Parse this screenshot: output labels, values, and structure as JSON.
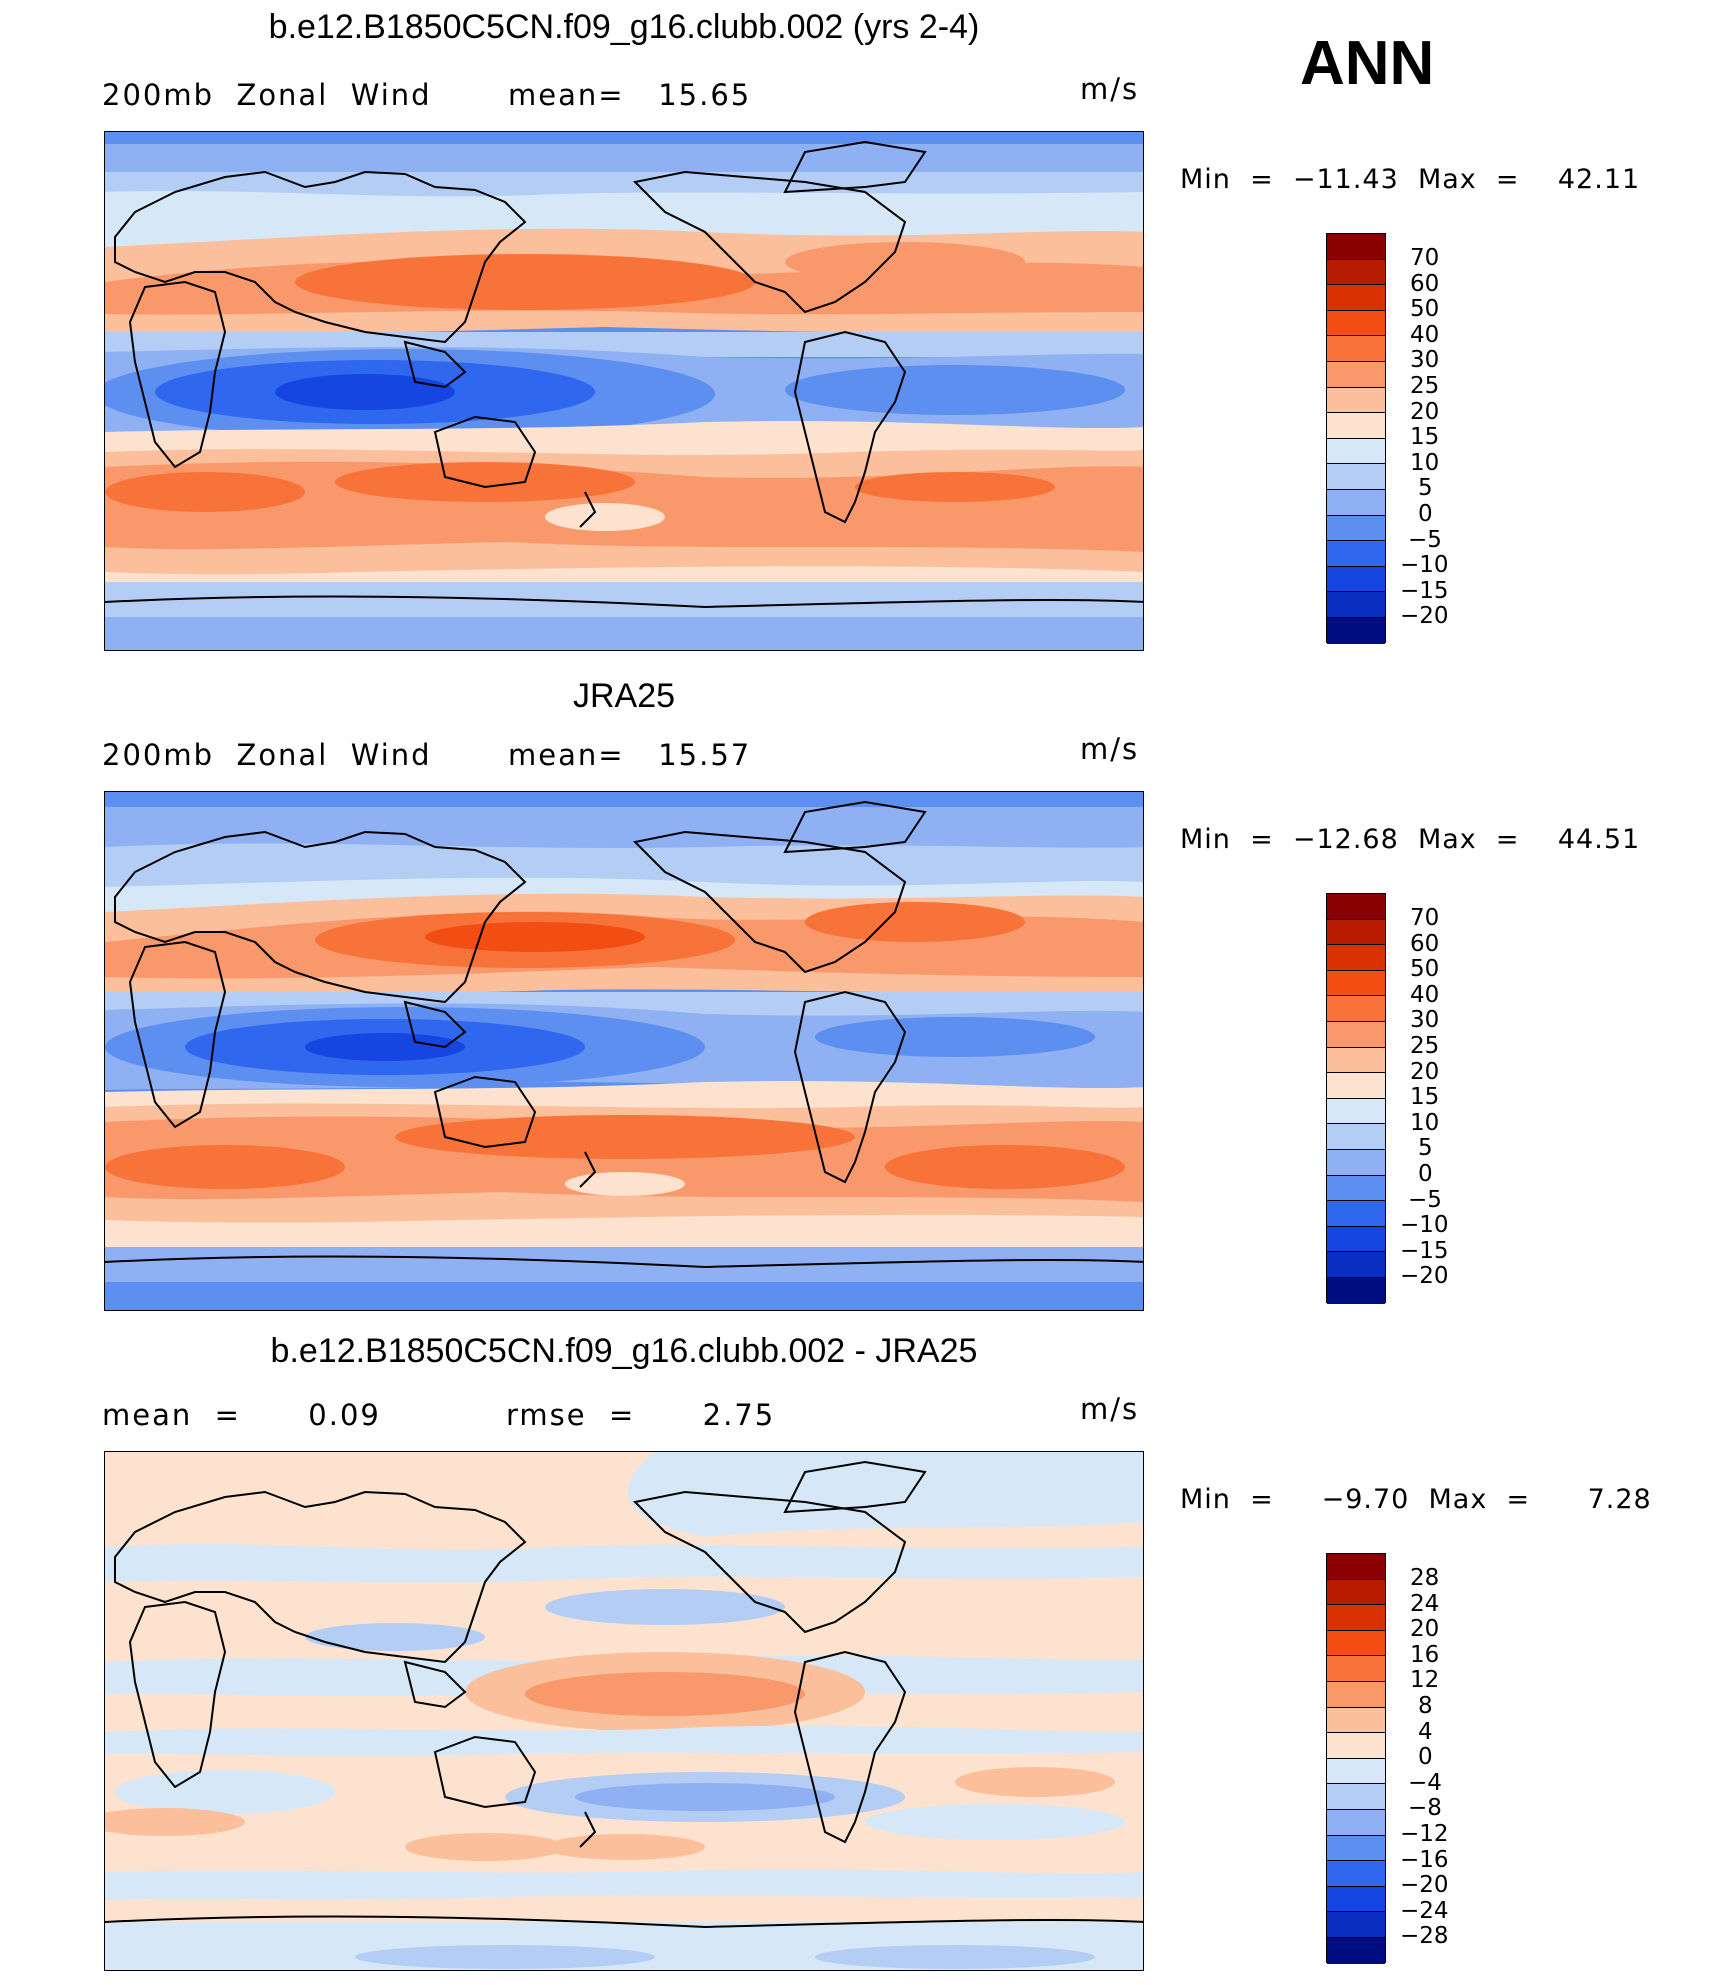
{
  "season_label": "ANN",
  "panels": [
    {
      "title": "b.e12.B1850C5CN.f09_g16.clubb.002 (yrs 2-4)",
      "left_text": "200mb  Zonal  Wind",
      "mid_text": "mean=   15.65",
      "units": "m/s",
      "minmax": "Min  =  −11.43  Max  =    42.11",
      "colorbar_labels": [
        "70",
        "60",
        "50",
        "40",
        "30",
        "25",
        "20",
        "15",
        "10",
        "5",
        "0",
        "−5",
        "−10",
        "−15",
        "−20"
      ]
    },
    {
      "title": "JRA25",
      "left_text": "200mb  Zonal  Wind",
      "mid_text": "mean=   15.57",
      "units": "m/s",
      "minmax": "Min  =  −12.68  Max  =    44.51",
      "colorbar_labels": [
        "70",
        "60",
        "50",
        "40",
        "30",
        "25",
        "20",
        "15",
        "10",
        "5",
        "0",
        "−5",
        "−10",
        "−15",
        "−20"
      ]
    },
    {
      "title": "b.e12.B1850C5CN.f09_g16.clubb.002 - JRA25",
      "left_text": "mean  =      0.09",
      "mid_text": "rmse  =      2.75",
      "units": "m/s",
      "minmax": "Min  =     −9.70  Max  =      7.28",
      "colorbar_labels": [
        "28",
        "24",
        "20",
        "16",
        "12",
        "8",
        "4",
        "0",
        "−4",
        "−8",
        "−12",
        "−16",
        "−20",
        "−24",
        "−28"
      ]
    }
  ],
  "colors": {
    "palette": [
      "#8b0000",
      "#b71c00",
      "#d93100",
      "#f24e14",
      "#f8733a",
      "#f9996b",
      "#fbbf9b",
      "#fde3cf",
      "#d6e8f8",
      "#b3cdf5",
      "#8fb0f3",
      "#5d8ff0",
      "#2f67ef",
      "#1546e0",
      "#0a2fc0",
      "#061f9e",
      "#000d80"
    ],
    "coastline": "#000000"
  },
  "colorbar_colors": [
    "#8b0000",
    "#b71c00",
    "#d93100",
    "#f24e14",
    "#f8733a",
    "#f9996b",
    "#fbbf9b",
    "#fde3cf",
    "#d6e8f8",
    "#b3cdf5",
    "#8fb0f3",
    "#5d8ff0",
    "#2f67ef",
    "#1546e0",
    "#0a2fc0",
    "#000d80"
  ]
}
